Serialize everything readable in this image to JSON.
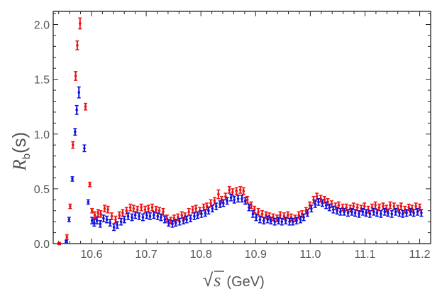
{
  "chart_data": {
    "type": "scatter",
    "title": "",
    "xlabel": {
      "radical": "√",
      "var": "s",
      "unit": "(GeV)"
    },
    "ylabel": {
      "main": "R",
      "sub": "b",
      "arg": "(s)"
    },
    "xlim": [
      10.53,
      11.22
    ],
    "ylim": [
      0.0,
      2.12
    ],
    "x_ticks": [
      10.6,
      10.7,
      10.8,
      10.9,
      11.0,
      11.1,
      11.2
    ],
    "x_tick_labels": [
      "10.6",
      "10.7",
      "10.8",
      "10.9",
      "11.0",
      "11.1",
      "11.2"
    ],
    "y_ticks": [
      0.0,
      0.5,
      1.0,
      1.5,
      2.0
    ],
    "y_tick_labels": [
      "0.0",
      "0.5",
      "1.0",
      "1.5",
      "2.0"
    ],
    "grid": false,
    "error_bars": true,
    "series": [
      {
        "color": "#ee1111",
        "x": [
          10.541,
          10.555,
          10.561,
          10.566,
          10.571,
          10.574,
          10.579,
          10.589,
          10.597,
          10.601,
          10.606,
          10.612,
          10.617,
          10.624,
          10.63,
          10.637,
          10.644,
          10.651,
          10.657,
          10.664,
          10.671,
          10.677,
          10.684,
          10.691,
          10.698,
          10.704,
          10.711,
          10.718,
          10.724,
          10.731,
          10.738,
          10.745,
          10.751,
          10.758,
          10.765,
          10.771,
          10.778,
          10.785,
          10.791,
          10.798,
          10.805,
          10.811,
          10.818,
          10.825,
          10.832,
          10.838,
          10.845,
          10.852,
          10.858,
          10.865,
          10.872,
          10.878,
          10.885,
          10.892,
          10.898,
          10.905,
          10.912,
          10.919,
          10.925,
          10.932,
          10.939,
          10.945,
          10.952,
          10.959,
          10.965,
          10.972,
          10.979,
          10.985,
          10.992,
          10.999,
          11.006,
          11.012,
          11.019,
          11.026,
          11.032,
          11.039,
          11.046,
          11.052,
          11.059,
          11.066,
          11.073,
          11.079,
          11.086,
          11.093,
          11.099,
          11.106,
          11.113,
          11.119,
          11.126,
          11.133,
          11.139,
          11.146,
          11.153,
          11.16,
          11.166,
          11.173,
          11.18,
          11.186,
          11.193,
          11.2
        ],
        "y": [
          0.0,
          0.06,
          0.34,
          0.9,
          1.53,
          1.81,
          2.01,
          1.25,
          0.54,
          0.3,
          0.26,
          0.28,
          0.27,
          0.32,
          0.31,
          0.25,
          0.22,
          0.26,
          0.28,
          0.3,
          0.33,
          0.32,
          0.31,
          0.33,
          0.31,
          0.32,
          0.33,
          0.31,
          0.3,
          0.29,
          0.23,
          0.21,
          0.23,
          0.24,
          0.26,
          0.25,
          0.29,
          0.31,
          0.32,
          0.3,
          0.33,
          0.34,
          0.37,
          0.39,
          0.45,
          0.4,
          0.43,
          0.49,
          0.47,
          0.48,
          0.49,
          0.48,
          0.4,
          0.35,
          0.31,
          0.29,
          0.27,
          0.26,
          0.25,
          0.24,
          0.23,
          0.26,
          0.25,
          0.26,
          0.24,
          0.23,
          0.26,
          0.27,
          0.3,
          0.35,
          0.4,
          0.43,
          0.41,
          0.4,
          0.38,
          0.36,
          0.34,
          0.35,
          0.33,
          0.33,
          0.32,
          0.34,
          0.33,
          0.32,
          0.34,
          0.31,
          0.33,
          0.35,
          0.33,
          0.34,
          0.32,
          0.35,
          0.34,
          0.32,
          0.34,
          0.31,
          0.33,
          0.32,
          0.34,
          0.33
        ],
        "err": [
          0.01,
          0.02,
          0.02,
          0.03,
          0.04,
          0.04,
          0.05,
          0.03,
          0.02,
          0.02,
          0.03,
          0.03,
          0.03,
          0.03,
          0.03,
          0.03,
          0.03,
          0.03,
          0.03,
          0.03,
          0.03,
          0.03,
          0.03,
          0.03,
          0.03,
          0.03,
          0.03,
          0.03,
          0.03,
          0.03,
          0.03,
          0.03,
          0.03,
          0.03,
          0.03,
          0.03,
          0.03,
          0.03,
          0.03,
          0.03,
          0.03,
          0.03,
          0.03,
          0.03,
          0.04,
          0.03,
          0.03,
          0.03,
          0.03,
          0.03,
          0.03,
          0.03,
          0.03,
          0.03,
          0.03,
          0.03,
          0.03,
          0.03,
          0.03,
          0.03,
          0.03,
          0.03,
          0.03,
          0.03,
          0.03,
          0.03,
          0.03,
          0.03,
          0.03,
          0.03,
          0.03,
          0.03,
          0.03,
          0.03,
          0.03,
          0.03,
          0.03,
          0.03,
          0.03,
          0.03,
          0.03,
          0.03,
          0.03,
          0.03,
          0.03,
          0.03,
          0.03,
          0.03,
          0.03,
          0.03,
          0.03,
          0.03,
          0.03,
          0.03,
          0.03,
          0.03,
          0.03,
          0.03,
          0.03,
          0.03
        ]
      },
      {
        "color": "#1111dd",
        "x": [
          10.554,
          10.559,
          10.565,
          10.57,
          10.573,
          10.577,
          10.587,
          10.594,
          10.601,
          10.605,
          10.61,
          10.616,
          10.622,
          10.628,
          10.634,
          10.641,
          10.647,
          10.654,
          10.66,
          10.667,
          10.674,
          10.68,
          10.687,
          10.694,
          10.701,
          10.707,
          10.714,
          10.721,
          10.727,
          10.734,
          10.741,
          10.748,
          10.754,
          10.761,
          10.768,
          10.774,
          10.781,
          10.788,
          10.794,
          10.801,
          10.808,
          10.814,
          10.821,
          10.828,
          10.835,
          10.841,
          10.848,
          10.855,
          10.861,
          10.868,
          10.875,
          10.881,
          10.888,
          10.895,
          10.901,
          10.908,
          10.915,
          10.922,
          10.928,
          10.935,
          10.942,
          10.948,
          10.955,
          10.962,
          10.968,
          10.975,
          10.982,
          10.988,
          10.995,
          11.002,
          11.009,
          11.015,
          11.022,
          11.029,
          11.035,
          11.042,
          11.049,
          11.055,
          11.062,
          11.069,
          11.076,
          11.082,
          11.089,
          11.096,
          11.102,
          11.109,
          11.116,
          11.122,
          11.129,
          11.136,
          11.142,
          11.149,
          11.156,
          11.163,
          11.169,
          11.176,
          11.183,
          11.189,
          11.196,
          11.203
        ],
        "y": [
          0.02,
          0.22,
          0.59,
          1.02,
          1.22,
          1.38,
          0.87,
          0.38,
          0.21,
          0.19,
          0.21,
          0.18,
          0.23,
          0.22,
          0.19,
          0.15,
          0.17,
          0.2,
          0.22,
          0.25,
          0.24,
          0.26,
          0.25,
          0.24,
          0.26,
          0.25,
          0.26,
          0.25,
          0.24,
          0.22,
          0.19,
          0.18,
          0.19,
          0.2,
          0.21,
          0.22,
          0.23,
          0.25,
          0.26,
          0.27,
          0.28,
          0.3,
          0.32,
          0.34,
          0.36,
          0.37,
          0.39,
          0.42,
          0.4,
          0.41,
          0.41,
          0.39,
          0.33,
          0.27,
          0.24,
          0.22,
          0.21,
          0.22,
          0.21,
          0.2,
          0.21,
          0.2,
          0.21,
          0.2,
          0.2,
          0.21,
          0.22,
          0.24,
          0.28,
          0.32,
          0.36,
          0.38,
          0.37,
          0.35,
          0.33,
          0.31,
          0.3,
          0.29,
          0.29,
          0.28,
          0.29,
          0.28,
          0.27,
          0.29,
          0.28,
          0.27,
          0.29,
          0.28,
          0.27,
          0.29,
          0.28,
          0.27,
          0.29,
          0.28,
          0.27,
          0.28,
          0.29,
          0.28,
          0.29,
          0.28
        ],
        "err": [
          0.01,
          0.02,
          0.02,
          0.03,
          0.04,
          0.05,
          0.03,
          0.02,
          0.03,
          0.03,
          0.03,
          0.03,
          0.03,
          0.03,
          0.03,
          0.03,
          0.03,
          0.03,
          0.03,
          0.03,
          0.03,
          0.03,
          0.03,
          0.03,
          0.03,
          0.03,
          0.03,
          0.03,
          0.03,
          0.03,
          0.03,
          0.03,
          0.03,
          0.03,
          0.03,
          0.03,
          0.03,
          0.03,
          0.03,
          0.03,
          0.03,
          0.03,
          0.03,
          0.03,
          0.03,
          0.03,
          0.03,
          0.03,
          0.03,
          0.03,
          0.03,
          0.03,
          0.03,
          0.03,
          0.03,
          0.03,
          0.03,
          0.03,
          0.03,
          0.03,
          0.03,
          0.03,
          0.03,
          0.03,
          0.03,
          0.03,
          0.03,
          0.03,
          0.03,
          0.03,
          0.03,
          0.03,
          0.03,
          0.03,
          0.03,
          0.03,
          0.03,
          0.03,
          0.03,
          0.03,
          0.03,
          0.03,
          0.03,
          0.03,
          0.03,
          0.03,
          0.03,
          0.03,
          0.03,
          0.03,
          0.03,
          0.03,
          0.03,
          0.03,
          0.03,
          0.03,
          0.03,
          0.03,
          0.03,
          0.03
        ]
      }
    ]
  }
}
